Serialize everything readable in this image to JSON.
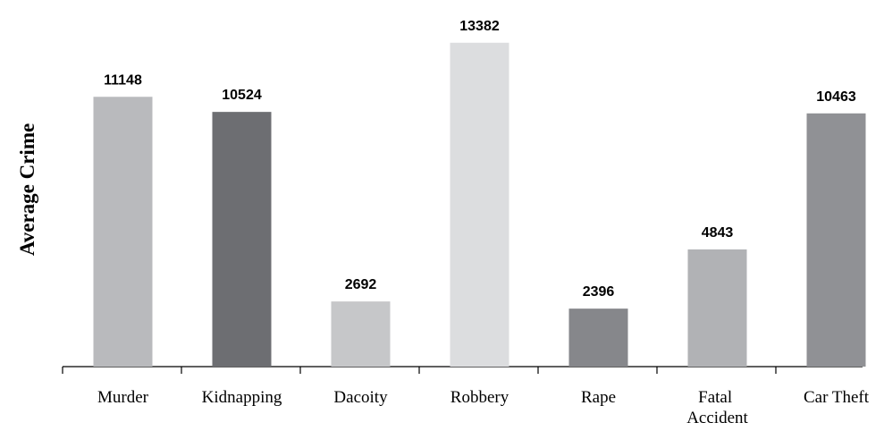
{
  "chart_data": {
    "type": "bar",
    "ylabel": "Average Crime",
    "categories": [
      "Murder",
      "Kidnapping",
      "Dacoity",
      "Robbery",
      "Rape",
      "Fatal Accident",
      "Car Theft"
    ],
    "values": [
      11148,
      10524,
      2692,
      13382,
      2396,
      4843,
      10463
    ],
    "colors": [
      "#b9babd",
      "#6d6e72",
      "#c6c7c9",
      "#dcdddf",
      "#86878b",
      "#b1b2b5",
      "#909195"
    ],
    "ylim": [
      0,
      15000
    ]
  }
}
